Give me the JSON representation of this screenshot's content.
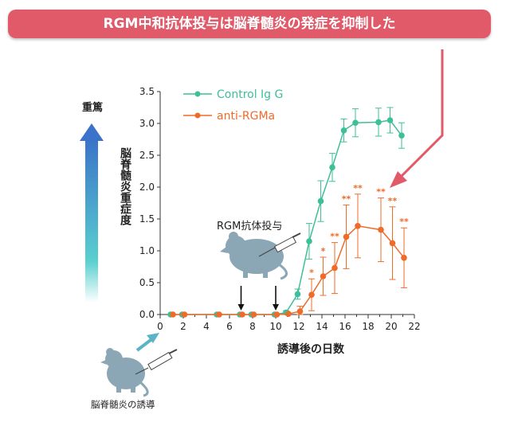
{
  "banner": {
    "title": "RGM中和抗体投与は脳脊髄炎の発症を抑制した"
  },
  "labels": {
    "severity_top": "重篤",
    "dosing": "RGM抗体投与",
    "induction": "脳脊髄炎の誘導"
  },
  "colors": {
    "banner": "#e05a6a",
    "control": "#3dbf98",
    "anti": "#ee6b2a",
    "gradient_top": "#3a73c9",
    "gradient_bottom": "#5ad0cf",
    "mouse": "#8ba7b5"
  },
  "chart_data": {
    "type": "line",
    "xlabel": "誘導後の日数",
    "ylabel": "脳脊髄炎重症度",
    "xlim": [
      0,
      22
    ],
    "ylim": [
      0,
      3.5
    ],
    "xticks": [
      0,
      2,
      4,
      6,
      8,
      10,
      12,
      14,
      16,
      18,
      20,
      22
    ],
    "yticks": [
      "0.0",
      "0.5",
      "1.0",
      "1.5",
      "2.0",
      "2.5",
      "3.0",
      "3.5"
    ],
    "legend_position": "top-left",
    "series": [
      {
        "name": "Control Ig G",
        "x": [
          1,
          2,
          5,
          7,
          8,
          10,
          11,
          12,
          13,
          14,
          15,
          16,
          17,
          19,
          20,
          21
        ],
        "y": [
          0,
          0,
          0,
          0,
          0,
          0,
          0.03,
          0.32,
          1.15,
          1.78,
          2.31,
          2.89,
          3.01,
          3.02,
          3.05,
          2.81
        ],
        "err": [
          0,
          0,
          0,
          0,
          0,
          0,
          0.03,
          0.08,
          0.28,
          0.32,
          0.22,
          0.18,
          0.22,
          0.22,
          0.2,
          0.2
        ]
      },
      {
        "name": "anti-RGMa",
        "x": [
          1,
          2,
          5,
          7,
          8,
          10,
          11,
          12,
          13,
          14,
          15,
          16,
          17,
          19,
          20,
          21
        ],
        "y": [
          0,
          0,
          0,
          0,
          0,
          0,
          0.01,
          0.05,
          0.31,
          0.6,
          0.73,
          1.22,
          1.39,
          1.33,
          1.12,
          0.89
        ],
        "err": [
          0,
          0,
          0,
          0,
          0,
          0,
          0.01,
          0.08,
          0.25,
          0.3,
          0.4,
          0.5,
          0.5,
          0.5,
          0.57,
          0.47
        ]
      }
    ],
    "significance": [
      {
        "x": 13,
        "text": "*"
      },
      {
        "x": 14,
        "text": "*"
      },
      {
        "x": 15,
        "text": "**"
      },
      {
        "x": 16,
        "text": "**"
      },
      {
        "x": 17,
        "text": "**"
      },
      {
        "x": 19,
        "text": "**"
      },
      {
        "x": 20,
        "text": "**"
      },
      {
        "x": 21,
        "text": "**"
      }
    ],
    "dosing_days": [
      7,
      10
    ]
  }
}
